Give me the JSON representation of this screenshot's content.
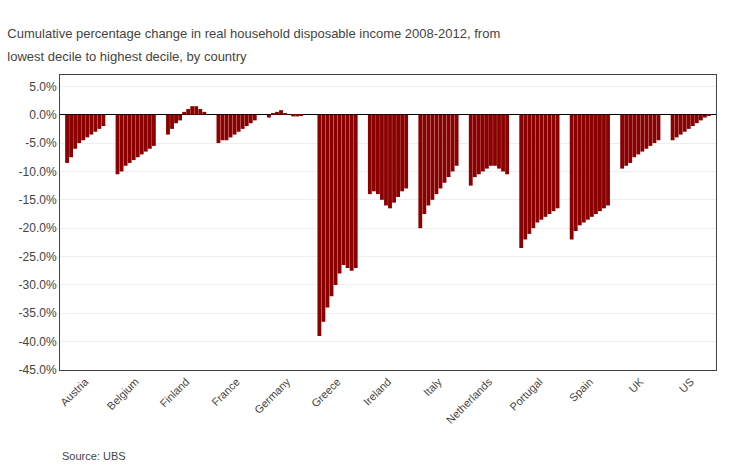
{
  "chart_data": {
    "type": "bar",
    "title": "Cumulative percentage change in real household disposable income 2008-2012, from",
    "subtitle": "lowest decile to highest decile, by country",
    "annotations": [
      "Source: UBS"
    ],
    "categories": [
      "Austria",
      "Belgium",
      "Finland",
      "France",
      "Germany",
      "Greece",
      "Ireland",
      "Italy",
      "Netherlands",
      "Portugal",
      "Spain",
      "UK",
      "US"
    ],
    "color": "#8B0000",
    "series": [
      {
        "values": [
          -8.5,
          -10.5,
          -3.5,
          -5.0,
          -0.5,
          -39.0,
          -14.0,
          -20.0,
          -12.5,
          -23.5,
          -22.0,
          -9.5,
          -4.5
        ]
      },
      {
        "values": [
          -7.5,
          -10.0,
          -2.5,
          -4.5,
          0.3,
          -36.5,
          -13.5,
          -17.5,
          -11.0,
          -22.0,
          -20.5,
          -9.0,
          -4.0
        ]
      },
      {
        "values": [
          -6.0,
          -9.0,
          -1.5,
          -4.5,
          0.5,
          -34.0,
          -14.0,
          -16.0,
          -10.5,
          -21.0,
          -19.5,
          -8.5,
          -3.5
        ]
      },
      {
        "values": [
          -5.0,
          -8.5,
          -1.0,
          -4.0,
          0.8,
          -32.0,
          -15.0,
          -15.0,
          -10.0,
          -20.0,
          -19.0,
          -7.5,
          -3.0
        ]
      },
      {
        "values": [
          -4.5,
          -8.0,
          0.5,
          -3.5,
          0.3,
          -30.0,
          -16.0,
          -14.0,
          -9.5,
          -19.0,
          -18.5,
          -7.0,
          -2.5
        ]
      },
      {
        "values": [
          -4.0,
          -7.5,
          1.0,
          -3.0,
          0.0,
          -28.0,
          -16.5,
          -13.0,
          -9.0,
          -18.5,
          -18.0,
          -6.5,
          -2.0
        ]
      },
      {
        "values": [
          -3.5,
          -7.0,
          1.5,
          -2.5,
          -0.3,
          -26.5,
          -15.5,
          -12.0,
          -9.0,
          -18.0,
          -17.5,
          -6.0,
          -1.5
        ]
      },
      {
        "values": [
          -3.0,
          -6.5,
          1.5,
          -2.0,
          -0.3,
          -27.0,
          -14.5,
          -11.0,
          -9.5,
          -17.5,
          -17.0,
          -5.5,
          -1.0
        ]
      },
      {
        "values": [
          -2.5,
          -6.0,
          1.0,
          -1.5,
          -0.2,
          -27.5,
          -13.5,
          -10.0,
          -10.0,
          -17.0,
          -16.5,
          -5.0,
          -0.5
        ]
      },
      {
        "values": [
          -2.0,
          -5.5,
          0.5,
          -1.0,
          0.0,
          -27.0,
          -13.0,
          -9.0,
          -10.5,
          -16.5,
          -16.0,
          -4.5,
          -0.2
        ]
      }
    ],
    "ylim": [
      -45,
      7
    ],
    "yticks": [
      {
        "value": 5,
        "label": "5.0%"
      },
      {
        "value": 0,
        "label": "0.0%"
      },
      {
        "value": -5,
        "label": "-5.0%"
      },
      {
        "value": -10,
        "label": "-10.0%"
      },
      {
        "value": -15,
        "label": "-15.0%"
      },
      {
        "value": -20,
        "label": "-20.0%"
      },
      {
        "value": -25,
        "label": "-25.0%"
      },
      {
        "value": -30,
        "label": "-30.0%"
      },
      {
        "value": -35,
        "label": "-35.0%"
      },
      {
        "value": -40,
        "label": "-40.0%"
      },
      {
        "value": -45,
        "label": "-45.0%"
      }
    ],
    "grid": true
  }
}
